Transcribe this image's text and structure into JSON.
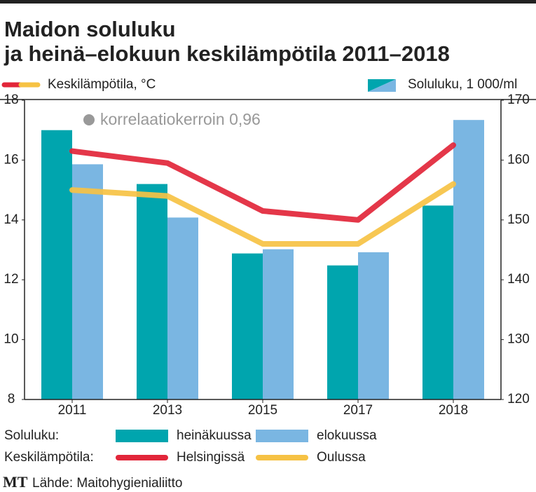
{
  "chart_data": {
    "type": "bar",
    "title": [
      "Maidon soluluku",
      "ja heinä–elokuun keskilämpötila 2011–2018"
    ],
    "ylabel": "Keskilämpötila, °C",
    "y2label": "Soluluku, 1 000/ml",
    "annotation": "korrelaatiokerroin 0,96",
    "legend_groups": [
      "Soluluku:",
      "Keskilämpötila:"
    ],
    "categories": [
      "2011",
      "2013",
      "2015",
      "2017",
      "2018"
    ],
    "ylim": [
      8,
      18
    ],
    "yticks": [
      8,
      10,
      12,
      14,
      16,
      18
    ],
    "y2lim": [
      120,
      170
    ],
    "y2ticks": [
      120,
      130,
      140,
      150,
      160,
      170
    ],
    "series": [
      {
        "name": "heinäkuussa",
        "type": "bar",
        "axis": "y2",
        "color": "#00a5ae",
        "values": [
          165,
          156,
          144.4,
          142.4,
          152.4
        ]
      },
      {
        "name": "elokuussa",
        "type": "bar",
        "axis": "y2",
        "color": "#7ab6e2",
        "values": [
          159.3,
          150.4,
          145.1,
          144.6,
          166.7
        ]
      },
      {
        "name": "Helsingissä",
        "type": "line",
        "color": "#e2263a",
        "values": [
          16.3,
          15.9,
          14.3,
          14.0,
          16.5
        ]
      },
      {
        "name": "Oulussa",
        "type": "line",
        "color": "#f6c244",
        "values": [
          15.0,
          14.8,
          13.2,
          13.2,
          15.2
        ]
      }
    ],
    "source": "Lähde: Maitohygienialiitto",
    "logo": "MT"
  }
}
